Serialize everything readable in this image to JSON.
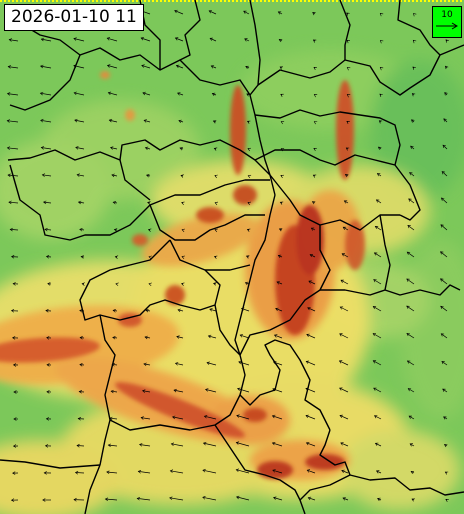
{
  "timestamp": "2026-01-10 11",
  "legend": {
    "reference_value": "10",
    "background_color": "#00ff00",
    "icon": "arrow-right-icon"
  },
  "colors": {
    "low": "#7fc95a",
    "mid_low": "#b7d96a",
    "mid": "#f1e36c",
    "mid_high": "#f0b24a",
    "high": "#e26a2c",
    "peak": "#b9301b",
    "boundary": "#000000",
    "frame_top": "#ffff00"
  },
  "wind_field": {
    "icon": "wind-arrow-icon",
    "prevailing_direction": "west-southwest"
  }
}
